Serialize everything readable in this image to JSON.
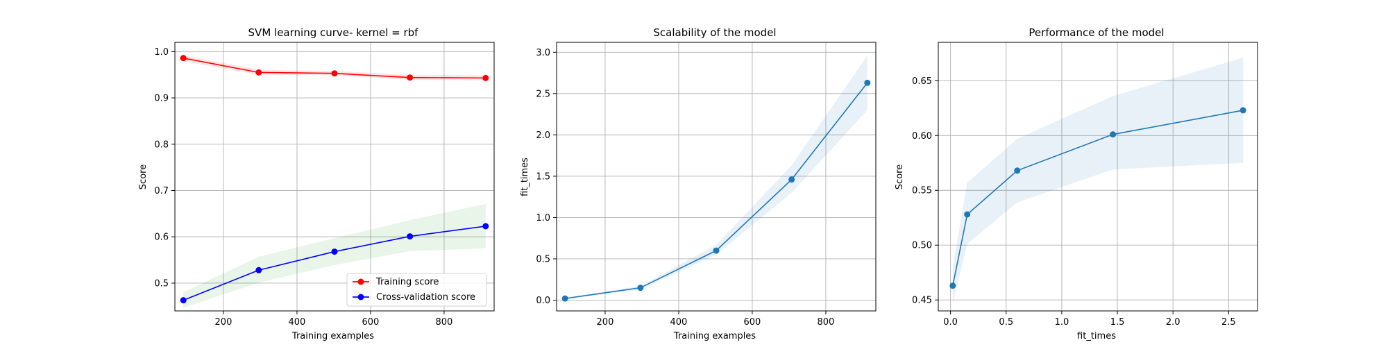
{
  "chart_data": [
    {
      "type": "line",
      "title": "SVM learning curve- kernel = rbf",
      "xlabel": "Training examples",
      "ylabel": "Score",
      "xlim": [
        68,
        936
      ],
      "ylim": [
        0.44,
        1.02
      ],
      "xticks": [
        200,
        400,
        600,
        800
      ],
      "yticks": [
        0.5,
        0.6,
        0.7,
        0.8,
        0.9,
        1.0
      ],
      "ytick_decimals": 1,
      "grid": true,
      "legend_position": "lower right",
      "series": [
        {
          "name": "Training score",
          "color": "#ff0000",
          "marker": true,
          "x": [
            91,
            296,
            502,
            707,
            913
          ],
          "y": [
            0.986,
            0.955,
            0.953,
            0.944,
            0.943
          ],
          "band_low": [
            0.979,
            0.95,
            0.949,
            0.939,
            0.938
          ],
          "band_high": [
            0.992,
            0.961,
            0.958,
            0.95,
            0.949
          ]
        },
        {
          "name": "Cross-validation score",
          "color": "#0000ff",
          "band_color": "#2ca02c",
          "marker": true,
          "x": [
            91,
            296,
            502,
            707,
            913
          ],
          "y": [
            0.463,
            0.528,
            0.568,
            0.601,
            0.623
          ],
          "band_low": [
            0.447,
            0.501,
            0.539,
            0.569,
            0.575
          ],
          "band_high": [
            0.48,
            0.557,
            0.597,
            0.636,
            0.671
          ]
        }
      ]
    },
    {
      "type": "line",
      "title": "Scalability of the model",
      "xlabel": "Training examples",
      "ylabel": "fit_times",
      "xlim": [
        68,
        936
      ],
      "ylim": [
        -0.13,
        3.12
      ],
      "xticks": [
        200,
        400,
        600,
        800
      ],
      "yticks": [
        0.0,
        0.5,
        1.0,
        1.5,
        2.0,
        2.5,
        3.0
      ],
      "ytick_decimals": 1,
      "grid": true,
      "series": [
        {
          "color": "#1f77b4",
          "marker": true,
          "x": [
            91,
            296,
            502,
            707,
            913
          ],
          "y": [
            0.02,
            0.15,
            0.6,
            1.46,
            2.63
          ],
          "band_low": [
            0.01,
            0.13,
            0.55,
            1.3,
            2.3
          ],
          "band_high": [
            0.03,
            0.17,
            0.67,
            1.63,
            2.96
          ]
        }
      ]
    },
    {
      "type": "line",
      "title": "Performance of the model",
      "xlabel": "fit_times",
      "ylabel": "Score",
      "xlim": [
        -0.11,
        2.76
      ],
      "ylim": [
        0.44,
        0.685
      ],
      "xticks": [
        0.0,
        0.5,
        1.0,
        1.5,
        2.0,
        2.5
      ],
      "yticks": [
        0.45,
        0.5,
        0.55,
        0.6,
        0.65
      ],
      "xtick_decimals": 1,
      "ytick_decimals": 2,
      "grid": true,
      "series": [
        {
          "color": "#1f77b4",
          "marker": true,
          "x": [
            0.02,
            0.15,
            0.6,
            1.46,
            2.63
          ],
          "y": [
            0.463,
            0.528,
            0.568,
            0.601,
            0.623
          ],
          "band_low": [
            0.447,
            0.501,
            0.539,
            0.569,
            0.575
          ],
          "band_high": [
            0.48,
            0.557,
            0.597,
            0.636,
            0.671
          ]
        }
      ]
    }
  ]
}
